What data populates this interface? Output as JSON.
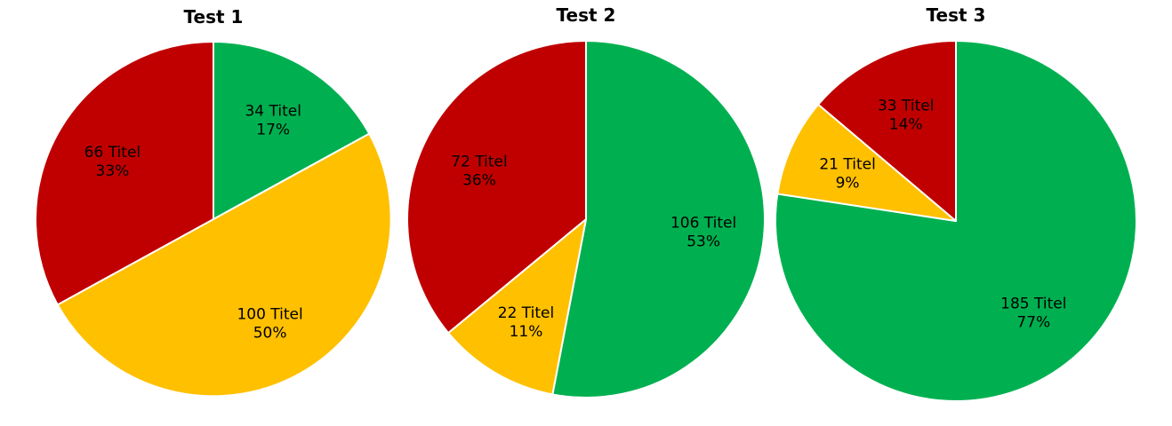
{
  "colors": {
    "green": "#00b050",
    "yellow": "#ffc000",
    "red": "#c00000",
    "border": "#ffffff"
  },
  "chart_data": [
    {
      "type": "pie",
      "title": "Test 1",
      "slices": [
        {
          "value": 34,
          "count_label": "34 Titel",
          "percent_label": "17%",
          "color": "green"
        },
        {
          "value": 100,
          "count_label": "100 Titel",
          "percent_label": "50%",
          "color": "yellow"
        },
        {
          "value": 66,
          "count_label": "66 Titel",
          "percent_label": "33%",
          "color": "red"
        }
      ]
    },
    {
      "type": "pie",
      "title": "Test 2",
      "slices": [
        {
          "value": 106,
          "count_label": "106 Titel",
          "percent_label": "53%",
          "color": "green"
        },
        {
          "value": 22,
          "count_label": "22 Titel",
          "percent_label": "11%",
          "color": "yellow"
        },
        {
          "value": 72,
          "count_label": "72 Titel",
          "percent_label": "36%",
          "color": "red"
        }
      ]
    },
    {
      "type": "pie",
      "title": "Test 3",
      "slices": [
        {
          "value": 185,
          "count_label": "185 Titel",
          "percent_label": "77%",
          "color": "green"
        },
        {
          "value": 21,
          "count_label": "21 Titel",
          "percent_label": "9%",
          "color": "yellow"
        },
        {
          "value": 33,
          "count_label": "33 Titel",
          "percent_label": "14%",
          "color": "red"
        }
      ]
    }
  ]
}
